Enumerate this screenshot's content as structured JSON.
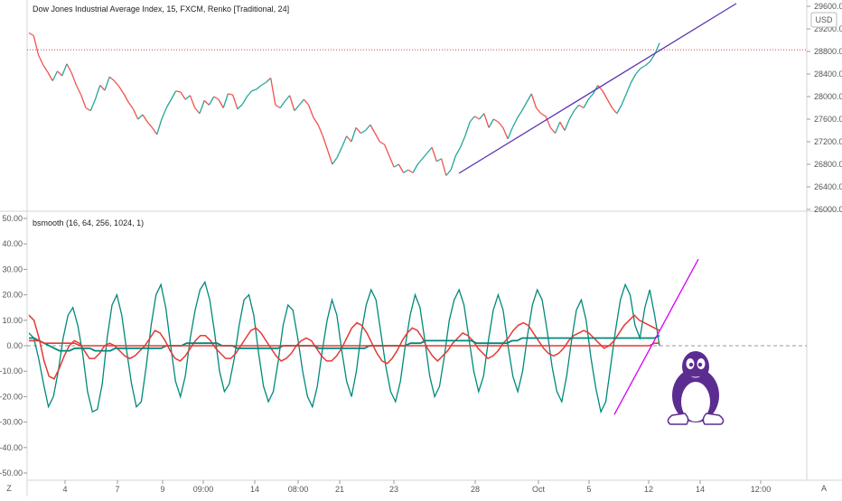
{
  "colors": {
    "up": "#26a69a",
    "down": "#ef5350",
    "trendline": "#5e35b1",
    "magenta": "#d500f9",
    "red_line": "#e53935",
    "teal_line": "#00897b",
    "reference_line": "#cc4444",
    "zero_dash": "#999999",
    "grid_axis": "#d6d6d6"
  },
  "icons": {
    "penguin": "linux-tux-icon",
    "bottom_left": "Z",
    "bottom_right": "A"
  },
  "chart_data": [
    {
      "type": "line",
      "title": "Dow Jones Industrial Average Index, 15, FXCM, Renko [Traditional, 24]",
      "currency": "USD",
      "ylim": [
        26000,
        29600
      ],
      "y_ticks": [
        26000,
        26400,
        26800,
        27200,
        27600,
        28000,
        28400,
        28800,
        29200,
        29600
      ],
      "y_tick_labels": [
        "26000.00",
        "26400.00",
        "26800.00",
        "27200.00",
        "27600.00",
        "28000.00",
        "28400.00",
        "28800.00",
        "29200.00",
        "29600.00"
      ],
      "grid": false,
      "reference_line": 28830,
      "series": [
        {
          "values": [
            29130,
            29080,
            28740,
            28560,
            28430,
            28280,
            28450,
            28370,
            28580,
            28420,
            28200,
            28030,
            27800,
            27750,
            27950,
            28200,
            28110,
            28350,
            28280,
            28180,
            28050,
            27900,
            27780,
            27600,
            27680,
            27550,
            27450,
            27330,
            27600,
            27800,
            27950,
            28100,
            28080,
            27950,
            28020,
            27800,
            27700,
            27930,
            27850,
            28000,
            27950,
            27800,
            28050,
            28030,
            27780,
            27860,
            28000,
            28100,
            28130,
            28200,
            28250,
            28330,
            27850,
            27800,
            27920,
            28020,
            27750,
            27850,
            27950,
            27850,
            27630,
            27500,
            27300,
            27050,
            26800,
            26920,
            27100,
            27300,
            27200,
            27450,
            27350,
            27400,
            27500,
            27350,
            27200,
            27150,
            26950,
            26750,
            26800,
            26650,
            26700,
            26650,
            26800,
            26900,
            27000,
            27100,
            26850,
            26900,
            26600,
            26700,
            26950,
            27100,
            27300,
            27550,
            27650,
            27600,
            27700,
            27450,
            27600,
            27550,
            27450,
            27250,
            27450,
            27620,
            27750,
            27900,
            28050,
            27800,
            27700,
            27650,
            27450,
            27350,
            27550,
            27400,
            27600,
            27750,
            27850,
            27800,
            27950,
            28050,
            28200,
            28100,
            27950,
            27800,
            27700,
            27850,
            28050,
            28250,
            28400,
            28500,
            28550,
            28620,
            28750,
            28950
          ]
        }
      ],
      "trendline": {
        "start": [
          "Sep 27",
          26640
        ],
        "end": [
          "Oct 15",
          29650
        ]
      }
    },
    {
      "type": "line",
      "title": "bsmooth (16, 64, 256, 1024, 1)",
      "ylim": [
        -50,
        50
      ],
      "y_ticks": [
        -50,
        -40,
        -30,
        -20,
        -10,
        0,
        10,
        20,
        30,
        40,
        50
      ],
      "y_tick_labels": [
        "-50.00",
        "-40.00",
        "-30.00",
        "-20.00",
        "-10.00",
        "0.00",
        "10.00",
        "20.00",
        "30.00",
        "40.00",
        "50.00"
      ],
      "zero_line": 0,
      "x_tick_labels": [
        "4",
        "7",
        "9",
        "09:00",
        "14",
        "08:00",
        "21",
        "23",
        "28",
        "Oct",
        "5",
        "12",
        "14",
        "12:00"
      ],
      "series": [
        {
          "values": [
            5,
            3,
            -5,
            -15,
            -24,
            -20,
            -10,
            3,
            12,
            15,
            8,
            -3,
            -18,
            -26,
            -25,
            -15,
            3,
            16,
            20,
            12,
            -2,
            -15,
            -24,
            -22,
            -8,
            8,
            20,
            24,
            15,
            0,
            -14,
            -20,
            -12,
            3,
            14,
            22,
            25,
            18,
            5,
            -10,
            -18,
            -15,
            -5,
            8,
            18,
            20,
            12,
            -3,
            -16,
            -22,
            -18,
            -6,
            8,
            16,
            14,
            3,
            -10,
            -20,
            -24,
            -16,
            -2,
            10,
            18,
            12,
            -2,
            -14,
            -20,
            -10,
            5,
            16,
            22,
            18,
            5,
            -8,
            -18,
            -22,
            -14,
            0,
            12,
            20,
            15,
            2,
            -12,
            -20,
            -16,
            -4,
            10,
            18,
            22,
            16,
            3,
            -10,
            -18,
            -12,
            2,
            14,
            20,
            14,
            0,
            -12,
            -18,
            -10,
            4,
            16,
            22,
            18,
            6,
            -8,
            -18,
            -22,
            -12,
            2,
            14,
            18,
            10,
            -5,
            -17,
            -26,
            -22,
            -8,
            6,
            18,
            24,
            20,
            8,
            3,
            15,
            22,
            12,
            0
          ]
        },
        {
          "values": [
            12,
            10,
            3,
            -6,
            -12,
            -13,
            -9,
            -4,
            0,
            2,
            1,
            -2,
            -5,
            -5,
            -3,
            0,
            1,
            0,
            -2,
            -4,
            -5,
            -4,
            -2,
            0,
            3,
            6,
            5,
            2,
            -2,
            -5,
            -6,
            -4,
            -1,
            2,
            4,
            4,
            2,
            -1,
            -3,
            -5,
            -5,
            -3,
            0,
            3,
            6,
            7,
            5,
            2,
            -1,
            -4,
            -6,
            -5,
            -3,
            0,
            2,
            3,
            2,
            -1,
            -4,
            -6,
            -6,
            -4,
            -1,
            3,
            7,
            9,
            8,
            5,
            1,
            -3,
            -6,
            -7,
            -5,
            -2,
            2,
            5,
            7,
            6,
            3,
            -1,
            -4,
            -6,
            -4,
            -2,
            1,
            3,
            5,
            4,
            2,
            -1,
            -3,
            -5,
            -4,
            -2,
            1,
            3,
            6,
            8,
            9,
            8,
            5,
            2,
            -1,
            -3,
            -4,
            -3,
            -1,
            2,
            4,
            5,
            6,
            5,
            3,
            1,
            -1,
            0,
            2,
            5,
            8,
            10,
            12,
            10,
            9,
            8,
            7,
            6
          ]
        },
        {
          "values": [
            3,
            3,
            2,
            1,
            0,
            -1,
            -2,
            -2,
            -2,
            -1,
            -1,
            -1,
            -1,
            -2,
            -2,
            -2,
            -2,
            -1,
            -1,
            -1,
            -1,
            -1,
            -1,
            -1,
            -1,
            -1,
            -1,
            0,
            0,
            0,
            0,
            1,
            1,
            1,
            1,
            1,
            1,
            1,
            0,
            0,
            0,
            -1,
            -1,
            -1,
            -1,
            -1,
            -1,
            -1,
            -1,
            -1,
            0,
            0,
            0,
            0,
            0,
            0,
            0,
            -1,
            -1,
            -1,
            -1,
            -1,
            -1,
            -1,
            -1,
            -1,
            -1,
            0,
            0,
            0,
            0,
            0,
            0,
            0,
            0,
            1,
            1,
            1,
            2,
            2,
            2,
            2,
            2,
            2,
            2,
            2,
            2,
            2,
            1,
            1,
            1,
            1,
            1,
            1,
            1,
            2,
            2,
            3,
            3,
            3,
            3,
            3,
            3,
            3,
            3,
            3,
            3,
            3,
            3,
            3,
            3,
            3,
            3,
            3,
            3,
            3,
            3,
            3,
            3,
            3,
            3,
            3,
            3,
            3,
            4
          ]
        },
        {
          "values": [
            2,
            2,
            2,
            1,
            1,
            1,
            1,
            1,
            1,
            1,
            0,
            0,
            0,
            0,
            0,
            0,
            0,
            0,
            0,
            0,
            0,
            0,
            0,
            0,
            0,
            0,
            0,
            0,
            0,
            0,
            0,
            0,
            0,
            0,
            0,
            0,
            0,
            0,
            0,
            0,
            0,
            0,
            0,
            0,
            0,
            0,
            0,
            0,
            0,
            0,
            0,
            0,
            0,
            0,
            0,
            0,
            0,
            0,
            0,
            0,
            0,
            0,
            0,
            0,
            0,
            0,
            0,
            0,
            0,
            0,
            0,
            0,
            0,
            0,
            0,
            0,
            0,
            0,
            0,
            0,
            0,
            0,
            0,
            0,
            0,
            0,
            0,
            0,
            0,
            0,
            0,
            0,
            0,
            0,
            0,
            0,
            0,
            0,
            0,
            0,
            0,
            0,
            0,
            0,
            0,
            0,
            0,
            0,
            0,
            0,
            0,
            0,
            0,
            0,
            0,
            0,
            0,
            0,
            0,
            0,
            0,
            0,
            0,
            1,
            1
          ]
        }
      ],
      "trendline": {
        "start": [
          "Oct 7",
          -27
        ],
        "end": [
          "Oct 14",
          34
        ]
      }
    }
  ]
}
